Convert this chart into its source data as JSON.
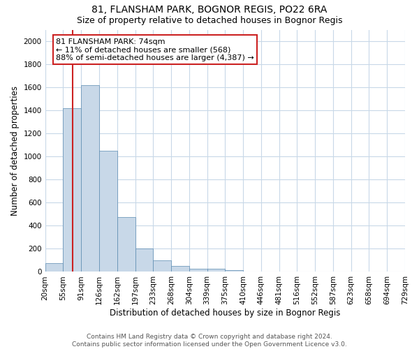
{
  "title": "81, FLANSHAM PARK, BOGNOR REGIS, PO22 6RA",
  "subtitle": "Size of property relative to detached houses in Bognor Regis",
  "xlabel": "Distribution of detached houses by size in Bognor Regis",
  "ylabel": "Number of detached properties",
  "bar_values": [
    75,
    1420,
    1620,
    1050,
    475,
    200,
    100,
    50,
    30,
    25,
    15,
    5,
    3,
    2,
    1,
    1,
    0,
    0,
    0,
    0
  ],
  "bin_labels": [
    "20sqm",
    "55sqm",
    "91sqm",
    "126sqm",
    "162sqm",
    "197sqm",
    "233sqm",
    "268sqm",
    "304sqm",
    "339sqm",
    "375sqm",
    "410sqm",
    "446sqm",
    "481sqm",
    "516sqm",
    "552sqm",
    "587sqm",
    "623sqm",
    "658sqm",
    "694sqm",
    "729sqm"
  ],
  "bar_color": "#c8d8e8",
  "bar_edge_color": "#5a8ab0",
  "vline_x": 1.53,
  "vline_color": "#cc2222",
  "annotation_text": "81 FLANSHAM PARK: 74sqm\n← 11% of detached houses are smaller (568)\n88% of semi-detached houses are larger (4,387) →",
  "annotation_box_color": "#ffffff",
  "annotation_box_edge": "#cc2222",
  "ylim": [
    0,
    2100
  ],
  "yticks": [
    0,
    200,
    400,
    600,
    800,
    1000,
    1200,
    1400,
    1600,
    1800,
    2000
  ],
  "background_color": "#ffffff",
  "grid_color": "#c8d8e8",
  "footer_text": "Contains HM Land Registry data © Crown copyright and database right 2024.\nContains public sector information licensed under the Open Government Licence v3.0.",
  "title_fontsize": 10,
  "subtitle_fontsize": 9,
  "axis_label_fontsize": 8.5,
  "tick_fontsize": 7.5,
  "annotation_fontsize": 8,
  "footer_fontsize": 6.5
}
